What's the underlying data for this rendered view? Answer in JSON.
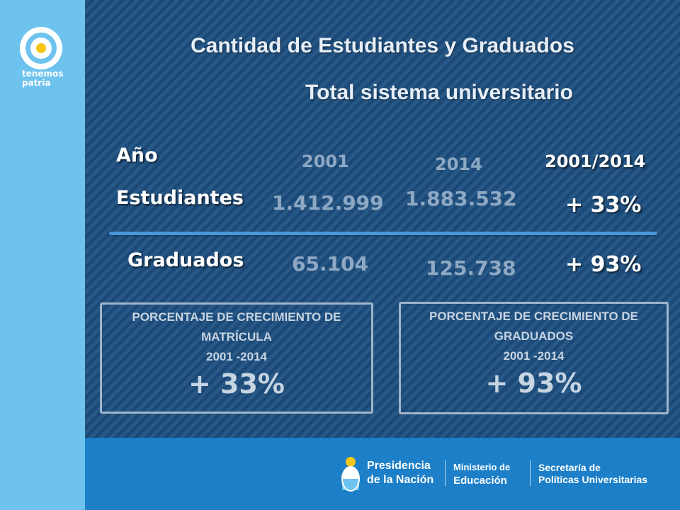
{
  "brand": {
    "line1": "tenemos",
    "line2": "patria",
    "sidebar_color": "#6ec3ee"
  },
  "title": {
    "line1": "Cantidad de Estudiantes y Graduados",
    "line2": "Total sistema universitario"
  },
  "table": {
    "header": {
      "label": "Año",
      "col1": "2001",
      "col2": "2014",
      "col3": "2001/2014"
    },
    "rows": [
      {
        "label": "Estudiantes",
        "v2001": "1.412.999",
        "v2014": "1.883.532",
        "change": "+ 33%"
      },
      {
        "label": "Graduados",
        "v2001": "65.104",
        "v2014": "125.738",
        "change": "+ 93%"
      }
    ]
  },
  "boxes": [
    {
      "line1": "PORCENTAJE DE CRECIMIENTO DE",
      "line2": "MATRÍCULA",
      "period": "2001 -2014",
      "value": "+ 33%"
    },
    {
      "line1": "PORCENTAJE DE CRECIMIENTO DE",
      "line2": "GRADUADOS",
      "period": "2001 -2014",
      "value": "+ 93%"
    }
  ],
  "footer": {
    "presidencia": "Presidencia",
    "nacion": "de la Nación",
    "ministerio": "Ministerio de",
    "educacion": "Educación",
    "secretaria": "Secretaría de",
    "politicas": "Políticas Universitarias",
    "color": "#1c7fc8"
  },
  "colors": {
    "background": "#1d4f7f",
    "value_text": "#8fa9c4"
  }
}
